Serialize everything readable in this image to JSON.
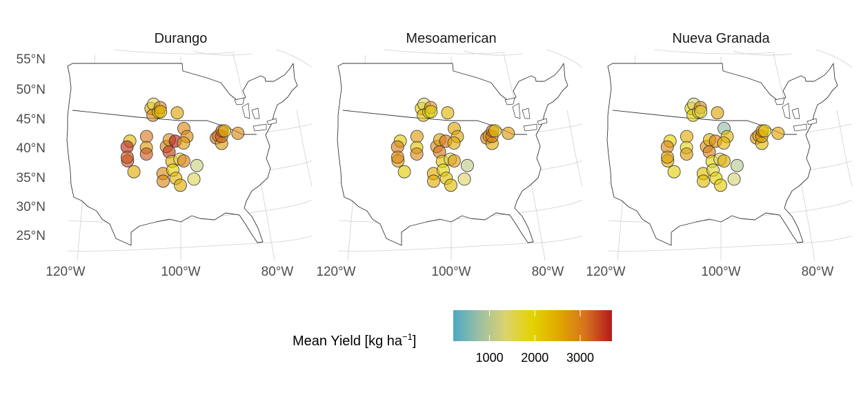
{
  "panels": [
    {
      "title": "Durango",
      "site_values": [
        3400,
        2300,
        3600,
        3300,
        2500,
        2500,
        1500,
        2900,
        3100,
        2700,
        3300,
        2300,
        3000,
        2300,
        2900,
        2900,
        3000,
        3500,
        2800,
        2400,
        2000,
        3700,
        2400,
        2600,
        1600,
        2500,
        3000,
        2900,
        2900,
        2700,
        1500,
        1200,
        3200,
        3000,
        2700,
        3200,
        3300,
        2300,
        2900
      ]
    },
    {
      "title": "Mesoamerican",
      "site_values": [
        2600,
        2100,
        3000,
        2900,
        2100,
        2100,
        1400,
        2300,
        2700,
        2200,
        2900,
        1900,
        2800,
        1800,
        2500,
        2500,
        2900,
        3100,
        2600,
        2200,
        1900,
        3100,
        2200,
        2400,
        1500,
        2300,
        2700,
        2600,
        2600,
        2500,
        1400,
        1100,
        3000,
        2800,
        2500,
        3000,
        3200,
        2100,
        2700
      ]
    },
    {
      "title": "Nueva Granada",
      "site_values": [
        2400,
        2000,
        2900,
        2700,
        2000,
        2000,
        1300,
        2100,
        2500,
        1800,
        2700,
        1700,
        2900,
        1600,
        2300,
        2300,
        2800,
        3000,
        2400,
        1900,
        1700,
        2900,
        2000,
        2600,
        1400,
        2100,
        2500,
        700,
        2400,
        2400,
        1300,
        1000,
        2800,
        2700,
        2300,
        2700,
        3000,
        2000,
        2600
      ]
    }
  ],
  "axes": {
    "lat_ticks": [
      "55°N",
      "50°N",
      "45°N",
      "40°N",
      "35°N",
      "30°N",
      "25°N"
    ],
    "lon_ticks": [
      "120°W",
      "100°W",
      "80°W"
    ]
  },
  "legend": {
    "title_main": "Mean Yield [kg ha",
    "title_sup": "−1",
    "title_end": "]",
    "ticks": [
      "1000",
      "2000",
      "3000"
    ],
    "tick_values": [
      1000,
      2000,
      3000
    ],
    "range": [
      200,
      3700
    ],
    "colors": [
      "#4BA8C4",
      "#9DC0A2",
      "#DCD36B",
      "#E3D300",
      "#E0A800",
      "#D6721E",
      "#B21B1B"
    ]
  },
  "chart_data": {
    "type": "scatter",
    "projection": "conic (USA)",
    "facets": [
      "Durango",
      "Mesoamerican",
      "Nueva Granada"
    ],
    "site_lonlat": [
      [
        -117.2,
        36.1
      ],
      [
        -118.1,
        39.5
      ],
      [
        -118.5,
        38.4
      ],
      [
        -117.6,
        36.7
      ],
      [
        -114.5,
        34.5
      ],
      [
        -112.9,
        45.8
      ],
      [
        -112.1,
        46.6
      ],
      [
        -111.6,
        44.7
      ],
      [
        -112.6,
        40.9
      ],
      [
        -112.0,
        39.0
      ],
      [
        -111.6,
        37.9
      ],
      [
        -109.5,
        45.4
      ],
      [
        -109.0,
        46.2
      ],
      [
        -108.6,
        45.5
      ],
      [
        -105.5,
        34.9
      ],
      [
        -105.3,
        33.6
      ],
      [
        -105.1,
        39.6
      ],
      [
        -104.0,
        38.7
      ],
      [
        -104.2,
        40.8
      ],
      [
        -102.9,
        37.1
      ],
      [
        -102.5,
        35.6
      ],
      [
        -102.0,
        40.6
      ],
      [
        -101.5,
        34.2
      ],
      [
        -101.5,
        45.5
      ],
      [
        -100.3,
        37.5
      ],
      [
        -100.1,
        33.0
      ],
      [
        -99.0,
        37.2
      ],
      [
        -98.8,
        42.8
      ],
      [
        -97.7,
        41.4
      ],
      [
        -99.0,
        40.3
      ],
      [
        -96.0,
        34.0
      ],
      [
        -94.8,
        36.3
      ],
      [
        -87.0,
        40.6
      ],
      [
        -86.0,
        40.9
      ],
      [
        -85.5,
        39.5
      ],
      [
        -85.0,
        40.7
      ],
      [
        -84.4,
        41.6
      ],
      [
        -83.5,
        41.5
      ],
      [
        -79.0,
        40.5
      ]
    ],
    "color_scale": "Mean Yield [kg ha−1]"
  }
}
